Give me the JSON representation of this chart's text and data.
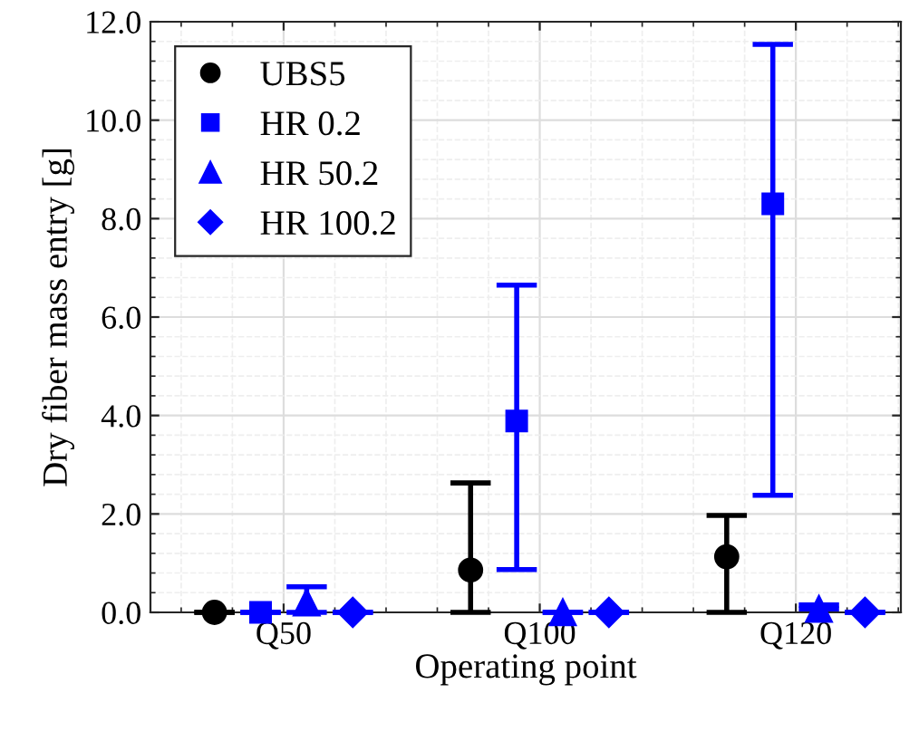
{
  "chart_data": {
    "type": "scatter",
    "xlabel": "Operating point",
    "ylabel": "Dry fiber mass entry [g]",
    "categories": [
      "Q50",
      "Q100",
      "Q120"
    ],
    "series": [
      {
        "name": "UBS5",
        "color": "#000000",
        "marker": "circle",
        "values": [
          0,
          0.86,
          1.13
        ],
        "errors": [
          [
            0,
            0
          ],
          [
            0,
            2.63
          ],
          [
            0,
            1.97
          ]
        ]
      },
      {
        "name": "HR 0.2",
        "color": "#0000ff",
        "marker": "square",
        "values": [
          0,
          3.89,
          8.3
        ],
        "errors": [
          [
            0,
            0
          ],
          [
            0.87,
            6.65
          ],
          [
            2.38,
            11.54
          ]
        ]
      },
      {
        "name": "HR 50.2",
        "color": "#0000ff",
        "marker": "triangle",
        "values": [
          0.2,
          0,
          0.07
        ],
        "errors": [
          [
            0,
            0.52
          ],
          [
            0,
            0
          ],
          [
            0.07,
            0.15
          ]
        ]
      },
      {
        "name": "HR 100.2",
        "color": "#0000ff",
        "marker": "diamond",
        "values": [
          0,
          0,
          0
        ],
        "errors": [
          [
            0,
            0
          ],
          [
            0,
            0
          ],
          [
            0,
            0
          ]
        ]
      }
    ],
    "ylim": [
      0,
      12
    ],
    "yticks": [
      {
        "value": 0,
        "label": "0.0"
      },
      {
        "value": 2,
        "label": "2.0"
      },
      {
        "value": 4,
        "label": "4.0"
      },
      {
        "value": 6,
        "label": "6.0"
      },
      {
        "value": 8,
        "label": "8.0"
      },
      {
        "value": 10,
        "label": "10.0"
      },
      {
        "value": 12,
        "label": "12.0"
      }
    ],
    "grid": true,
    "legend": "top left"
  }
}
